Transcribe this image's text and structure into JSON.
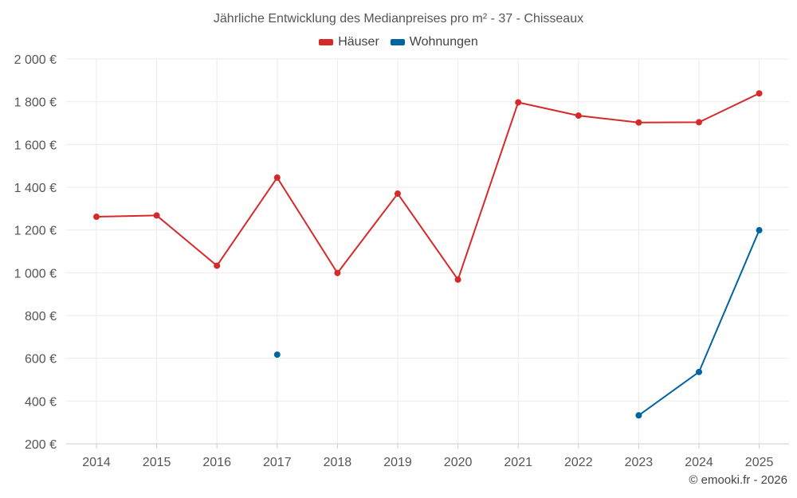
{
  "chart_data": {
    "type": "line",
    "title": "Jährliche Entwicklung des Medianpreises pro m² - 37 - Chisseaux",
    "x": [
      "2014",
      "2015",
      "2016",
      "2017",
      "2018",
      "2019",
      "2020",
      "2021",
      "2022",
      "2023",
      "2024",
      "2025"
    ],
    "series": [
      {
        "name": "Häuser",
        "color": "#d62a2a",
        "values": [
          1262,
          1268,
          1033,
          1445,
          999,
          1370,
          968,
          1797,
          1735,
          1703,
          1704,
          1839
        ]
      },
      {
        "name": "Wohnungen",
        "color": "#00659e",
        "values": [
          null,
          null,
          null,
          617,
          null,
          null,
          null,
          null,
          null,
          333,
          536,
          1199
        ]
      }
    ],
    "ylim": [
      200,
      2000
    ],
    "yticks": [
      "200 €",
      "400 €",
      "600 €",
      "800 €",
      "1 000 €",
      "1 200 €",
      "1 400 €",
      "1 600 €",
      "1 800 €",
      "2 000 €"
    ],
    "ytick_values": [
      200,
      400,
      600,
      800,
      1000,
      1200,
      1400,
      1600,
      1800,
      2000
    ],
    "grid": true,
    "legend": "top-center",
    "credit": "© emooki.fr - 2026"
  }
}
